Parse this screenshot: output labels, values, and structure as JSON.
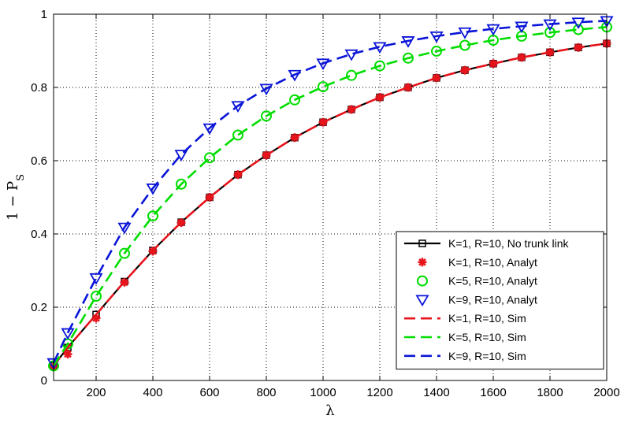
{
  "chart_data": {
    "type": "line",
    "xlabel": "λ",
    "ylabel": "1 − P",
    "ylabel_sub": "S",
    "xlim": [
      50,
      2000
    ],
    "ylim": [
      0,
      1
    ],
    "xticks": [
      200,
      400,
      600,
      800,
      1000,
      1200,
      1400,
      1600,
      1800,
      2000
    ],
    "yticks": [
      0,
      0.2,
      0.4,
      0.6,
      0.8,
      1
    ],
    "xtick_labels": [
      "200",
      "400",
      "600",
      "800",
      "1000",
      "1200",
      "1400",
      "1600",
      "1800",
      "2000"
    ],
    "ytick_labels": [
      "0",
      "0.2",
      "0.4",
      "0.6",
      "0.8",
      "1"
    ],
    "grid": true,
    "legend_position": "bottom-right",
    "series": [
      {
        "name": "K=1, R=10, No trunk link",
        "style": "solid-square",
        "color": "#000000",
        "x": [
          50,
          100,
          200,
          300,
          400,
          500,
          600,
          700,
          800,
          900,
          1000,
          1100,
          1200,
          1300,
          1400,
          1500,
          1600,
          1700,
          1800,
          1900,
          2000
        ],
        "y": [
          0.04,
          0.09,
          0.18,
          0.27,
          0.355,
          0.432,
          0.5,
          0.562,
          0.615,
          0.663,
          0.705,
          0.74,
          0.773,
          0.8,
          0.826,
          0.847,
          0.865,
          0.882,
          0.896,
          0.909,
          0.92
        ]
      },
      {
        "name": "K=1, R=10, Analyt",
        "style": "marker-star",
        "color": "#e8141c",
        "x": [
          50,
          100,
          200,
          300,
          400,
          500,
          600,
          700,
          800,
          900,
          1000,
          1100,
          1200,
          1300,
          1400,
          1500,
          1600,
          1700,
          1800,
          1900,
          2000
        ],
        "y": [
          0.038,
          0.072,
          0.17,
          0.268,
          0.353,
          0.431,
          0.5,
          0.562,
          0.615,
          0.663,
          0.705,
          0.74,
          0.773,
          0.8,
          0.826,
          0.847,
          0.865,
          0.882,
          0.896,
          0.909,
          0.92
        ]
      },
      {
        "name": "K=5, R=10, Analyt",
        "style": "marker-circle",
        "color": "#00dd00",
        "x": [
          50,
          100,
          200,
          300,
          400,
          500,
          600,
          700,
          800,
          900,
          1000,
          1100,
          1200,
          1300,
          1400,
          1500,
          1600,
          1700,
          1800,
          1900,
          2000
        ],
        "y": [
          0.04,
          0.1,
          0.23,
          0.347,
          0.449,
          0.536,
          0.608,
          0.67,
          0.722,
          0.766,
          0.802,
          0.833,
          0.859,
          0.88,
          0.899,
          0.915,
          0.929,
          0.94,
          0.95,
          0.958,
          0.965
        ]
      },
      {
        "name": "K=9, R=10, Analyt",
        "style": "marker-triangle-down",
        "color": "#0a14d8",
        "x": [
          50,
          100,
          200,
          300,
          400,
          500,
          600,
          700,
          800,
          900,
          1000,
          1100,
          1200,
          1300,
          1400,
          1500,
          1600,
          1700,
          1800,
          1900,
          2000
        ],
        "y": [
          0.048,
          0.13,
          0.28,
          0.418,
          0.525,
          0.617,
          0.689,
          0.75,
          0.797,
          0.835,
          0.866,
          0.891,
          0.911,
          0.927,
          0.94,
          0.951,
          0.96,
          0.967,
          0.973,
          0.978,
          0.982
        ]
      },
      {
        "name": "K=1, R=10, Sim",
        "style": "dashed",
        "color": "#e8141c",
        "x": [
          50,
          100,
          200,
          300,
          400,
          500,
          600,
          700,
          800,
          900,
          1000,
          1100,
          1200,
          1300,
          1400,
          1500,
          1600,
          1700,
          1800,
          1900,
          2000
        ],
        "y": [
          0.04,
          0.09,
          0.18,
          0.27,
          0.355,
          0.432,
          0.5,
          0.562,
          0.615,
          0.663,
          0.705,
          0.74,
          0.773,
          0.8,
          0.826,
          0.847,
          0.865,
          0.882,
          0.896,
          0.909,
          0.92
        ]
      },
      {
        "name": "K=5, R=10, Sim",
        "style": "dashed",
        "color": "#00dd00",
        "x": [
          50,
          100,
          200,
          300,
          400,
          500,
          600,
          700,
          800,
          900,
          1000,
          1100,
          1200,
          1300,
          1400,
          1500,
          1600,
          1700,
          1800,
          1900,
          2000
        ],
        "y": [
          0.04,
          0.1,
          0.23,
          0.347,
          0.449,
          0.536,
          0.608,
          0.67,
          0.722,
          0.766,
          0.802,
          0.833,
          0.859,
          0.88,
          0.899,
          0.915,
          0.929,
          0.94,
          0.95,
          0.958,
          0.965
        ]
      },
      {
        "name": "K=9, R=10, Sim",
        "style": "dashed",
        "color": "#0a14d8",
        "x": [
          50,
          100,
          200,
          300,
          400,
          500,
          600,
          700,
          800,
          900,
          1000,
          1100,
          1200,
          1300,
          1400,
          1500,
          1600,
          1700,
          1800,
          1900,
          2000
        ],
        "y": [
          0.048,
          0.13,
          0.28,
          0.418,
          0.525,
          0.617,
          0.689,
          0.75,
          0.797,
          0.835,
          0.866,
          0.891,
          0.911,
          0.927,
          0.94,
          0.951,
          0.96,
          0.967,
          0.973,
          0.978,
          0.982
        ]
      }
    ]
  }
}
